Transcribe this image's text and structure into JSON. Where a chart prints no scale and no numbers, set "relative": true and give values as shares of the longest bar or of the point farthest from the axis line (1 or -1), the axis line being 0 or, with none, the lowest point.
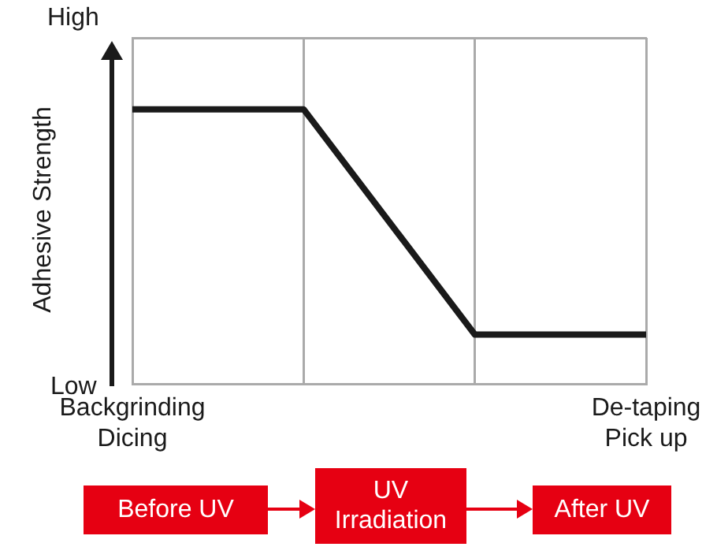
{
  "chart_data": {
    "type": "line",
    "ylabel": "Adhesive Strength",
    "relative": true,
    "categories": [
      "Backgrinding\nDicing",
      null,
      null,
      "De-taping\nPick up"
    ],
    "series": [
      {
        "color": "#1a1a1a",
        "values": [
          1,
          1,
          0.18,
          0.18
        ]
      }
    ],
    "grid": "x",
    "legend": false,
    "marker": "none",
    "line_style": "solid",
    "annotations": [
      "High",
      "Low",
      "Before UV",
      "UV\nIrradiation",
      "After UV"
    ]
  }
}
